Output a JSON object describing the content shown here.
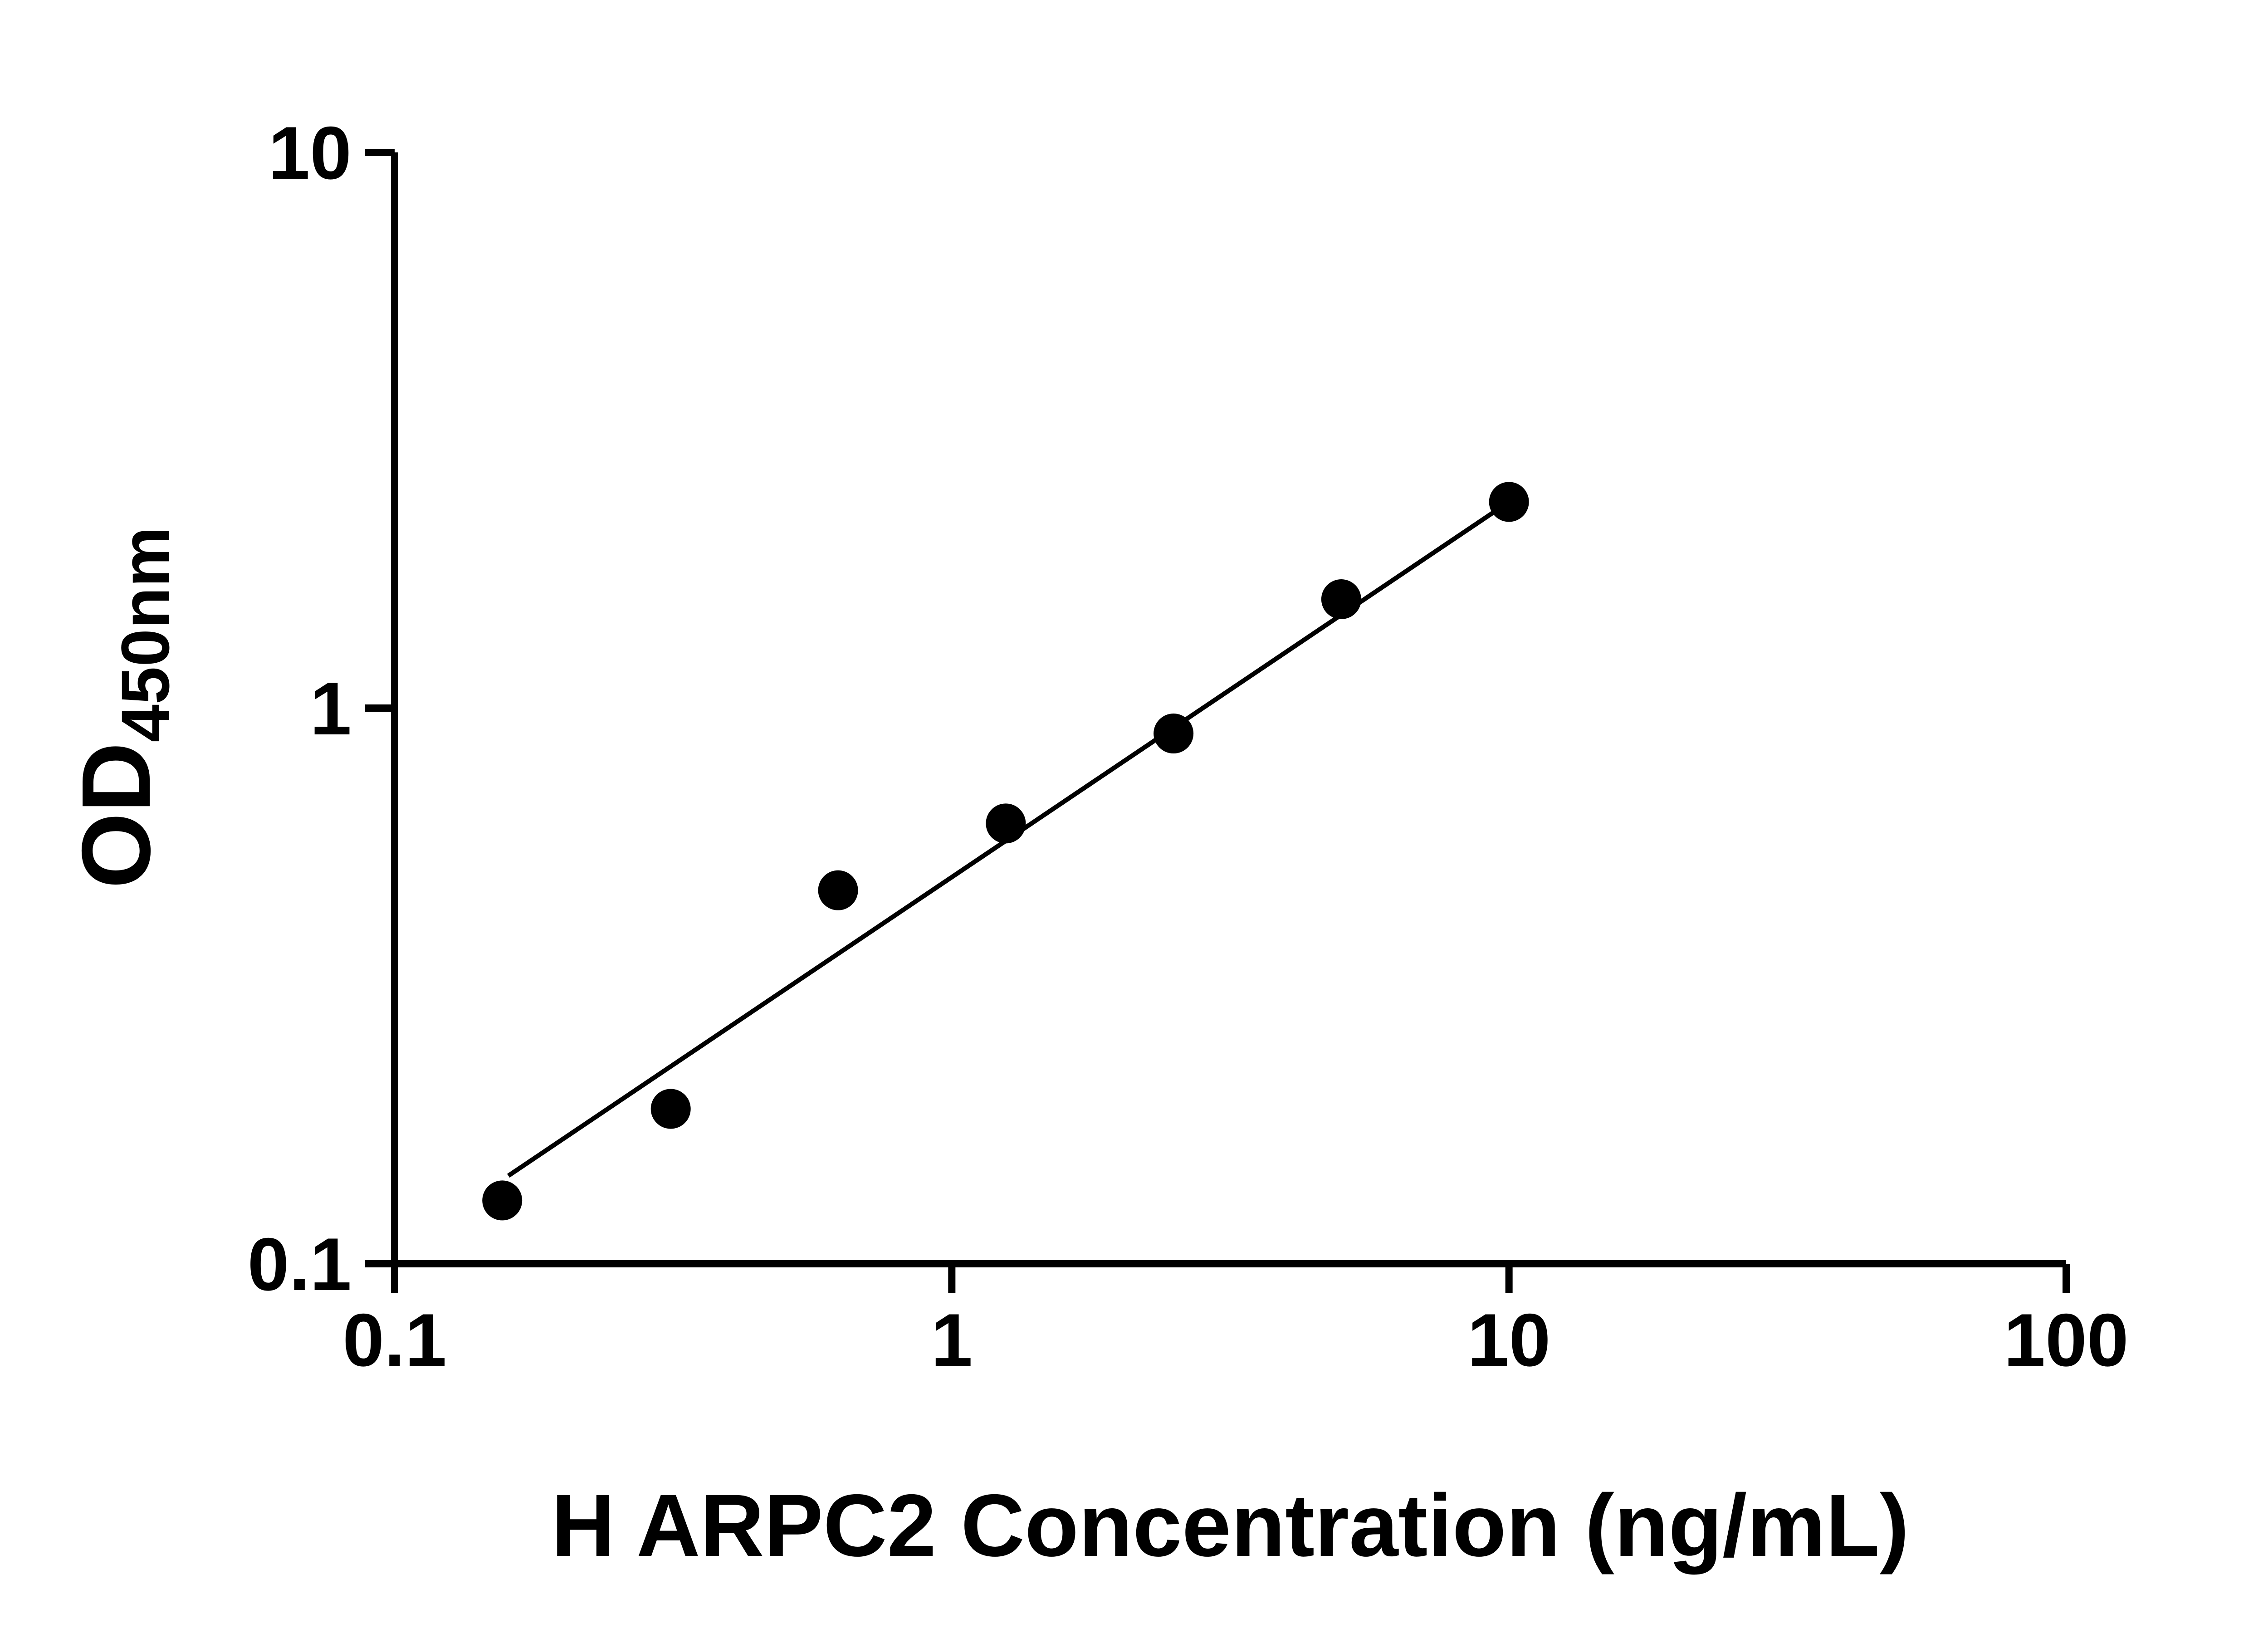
{
  "figure": {
    "background": "#ffffff"
  },
  "chart_data": {
    "type": "scatter",
    "title": "",
    "xlabel": "H ARPC2 Concentration (ng/mL)",
    "ylabel_main": "OD",
    "ylabel_sub": "450nm",
    "x_scale": "log",
    "y_scale": "log",
    "xlim": [
      0.1,
      100
    ],
    "ylim": [
      0.1,
      10
    ],
    "x_ticks": [
      0.1,
      1,
      10,
      100
    ],
    "x_tick_labels": [
      "0.1",
      "1",
      "10",
      "100"
    ],
    "y_ticks": [
      0.1,
      1,
      10
    ],
    "y_tick_labels": [
      "0.1",
      "1",
      "10"
    ],
    "grid": false,
    "legend": "none",
    "axis_color": "#000000",
    "marker_color": "#000000",
    "points": [
      {
        "x": 0.156,
        "y": 0.13
      },
      {
        "x": 0.313,
        "y": 0.19
      },
      {
        "x": 0.625,
        "y": 0.47
      },
      {
        "x": 1.25,
        "y": 0.62
      },
      {
        "x": 2.5,
        "y": 0.9
      },
      {
        "x": 5,
        "y": 1.57
      },
      {
        "x": 10,
        "y": 2.35
      }
    ],
    "trendline": {
      "x1": 0.16,
      "y1": 0.144,
      "x2": 10,
      "y2": 2.35,
      "color": "#000000"
    }
  }
}
